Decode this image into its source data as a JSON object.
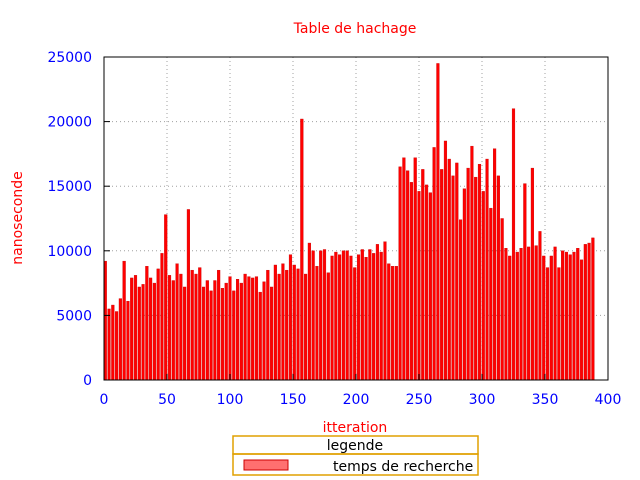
{
  "chart_data": {
    "type": "bar",
    "title": "Table de hachage",
    "xlabel": "itteration",
    "ylabel": "nanoseconde",
    "xlim": [
      0,
      400
    ],
    "ylim": [
      0,
      25000
    ],
    "x_ticks": [
      "0",
      "50",
      "100",
      "150",
      "200",
      "250",
      "300",
      "350",
      "400"
    ],
    "y_ticks": [
      "0",
      "5000",
      "10000",
      "15000",
      "20000",
      "25000"
    ],
    "grid": true,
    "legend": {
      "title": "legende",
      "placement": "bottom-center"
    },
    "colors": {
      "bar_fill": "#ff0000",
      "bar_edge": "#cc0000",
      "text": "#ff0000",
      "ticks": "#0000ff",
      "grid": "#a0a0a0",
      "legend_border": "#e0a000",
      "legend_swatch": "#ff7070"
    },
    "series": [
      {
        "name": "temps de recherche",
        "x_start": 1,
        "x_step": 3,
        "values": [
          9200,
          5500,
          5800,
          5300,
          6300,
          9200,
          6100,
          7900,
          8100,
          7200,
          7400,
          8800,
          7900,
          7500,
          8600,
          9800,
          12800,
          8100,
          7700,
          9000,
          8200,
          7200,
          13200,
          8500,
          8200,
          8700,
          7200,
          7700,
          6900,
          7700,
          8500,
          7100,
          7500,
          8000,
          6900,
          7800,
          7500,
          8200,
          8000,
          7900,
          8000,
          6800,
          7600,
          8500,
          7200,
          8900,
          8200,
          9000,
          8500,
          9700,
          8900,
          8600,
          20200,
          8200,
          10600,
          10000,
          8800,
          10000,
          10100,
          8300,
          9600,
          9900,
          9700,
          10000,
          10000,
          9600,
          8700,
          9700,
          10100,
          9500,
          10100,
          9800,
          10500,
          9900,
          10700,
          9000,
          8800,
          8800,
          16500,
          17200,
          16200,
          15300,
          17200,
          14600,
          16300,
          15100,
          14500,
          18000,
          24500,
          16300,
          18500,
          17100,
          15800,
          16800,
          12400,
          14800,
          16400,
          18100,
          15700,
          16700,
          14600,
          17100,
          13300,
          17900,
          15800,
          12500,
          10200,
          9600,
          21000,
          9900,
          10200,
          15200,
          10300,
          16400,
          10400,
          11500,
          9600,
          8700,
          9600,
          10300,
          8700,
          10000,
          9900,
          9700,
          9900,
          10200,
          9300,
          10500,
          10600,
          11000
        ]
      }
    ]
  }
}
